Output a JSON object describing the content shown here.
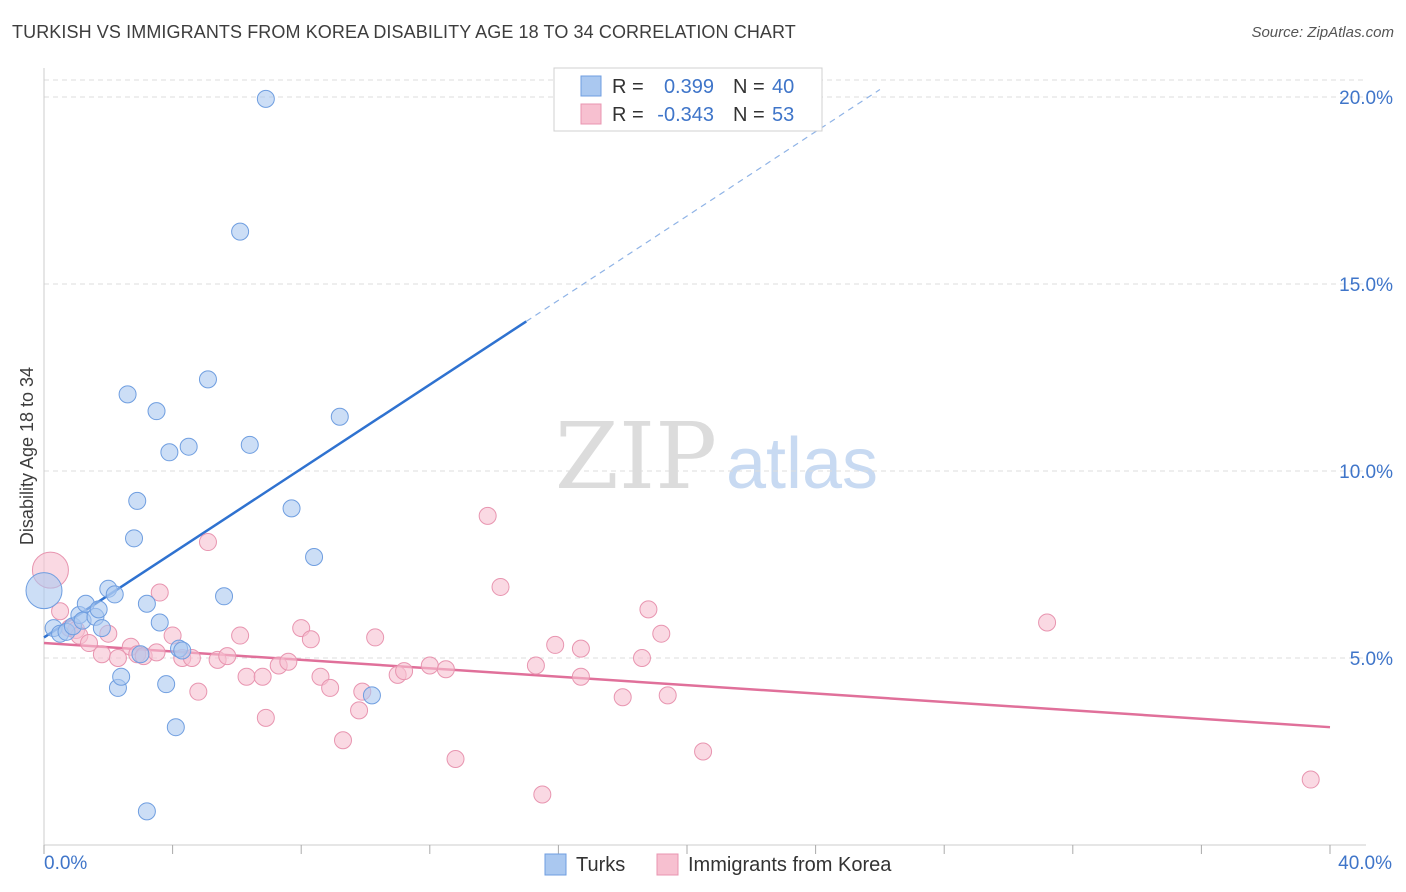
{
  "header": {
    "title": "TURKISH VS IMMIGRANTS FROM KOREA DISABILITY AGE 18 TO 34 CORRELATION CHART",
    "source": "Source: ZipAtlas.com"
  },
  "watermark": {
    "zip": "ZIP",
    "atlas": "atlas"
  },
  "colors": {
    "turks_fill": "#aac8f0",
    "turks_stroke": "#6f9ee0",
    "turks_line": "#2f72d0",
    "korea_fill": "#f7c0d0",
    "korea_stroke": "#e895b0",
    "korea_line": "#e0709a",
    "tick_text": "#3f75c9",
    "grid": "#dddddd"
  },
  "legend": {
    "rows": [
      {
        "r_label": "R =",
        "r_value": "0.399",
        "n_label": "N =",
        "n_value": "40"
      },
      {
        "r_label": "R =",
        "r_value": "-0.343",
        "n_label": "N =",
        "n_value": "53"
      }
    ]
  },
  "chart_data": {
    "type": "scatter",
    "title": "TURKISH VS IMMIGRANTS FROM KOREA DISABILITY AGE 18 TO 34 CORRELATION CHART",
    "xlabel": "",
    "ylabel": "Disability Age 18 to 34",
    "xlim": [
      0,
      40
    ],
    "ylim": [
      0,
      20.5
    ],
    "x_tick_labels": [
      "0.0%",
      "40.0%"
    ],
    "y_ticks": [
      5,
      10,
      15,
      20
    ],
    "y_tick_labels": [
      "5.0%",
      "10.0%",
      "15.0%",
      "20.0%"
    ],
    "legend_labels": [
      "Turks",
      "Immigrants from Korea"
    ],
    "series": [
      {
        "name": "Turks",
        "r": 0.399,
        "n": 40,
        "trend": {
          "x": [
            0.0,
            15.0
          ],
          "y": [
            5.55,
            14.0
          ],
          "dashed_to": [
            26.0,
            20.2
          ]
        },
        "points": [
          {
            "x": 0.0,
            "y": 6.8,
            "big": true
          },
          {
            "x": 0.3,
            "y": 5.8
          },
          {
            "x": 0.5,
            "y": 5.65
          },
          {
            "x": 0.7,
            "y": 5.7
          },
          {
            "x": 0.9,
            "y": 5.85
          },
          {
            "x": 1.1,
            "y": 6.15
          },
          {
            "x": 1.2,
            "y": 6.0
          },
          {
            "x": 1.3,
            "y": 6.45
          },
          {
            "x": 1.6,
            "y": 6.1
          },
          {
            "x": 1.7,
            "y": 6.3
          },
          {
            "x": 1.8,
            "y": 5.8
          },
          {
            "x": 2.0,
            "y": 6.85
          },
          {
            "x": 2.2,
            "y": 6.7
          },
          {
            "x": 2.3,
            "y": 4.2
          },
          {
            "x": 2.4,
            "y": 4.5
          },
          {
            "x": 2.6,
            "y": 12.05
          },
          {
            "x": 2.8,
            "y": 8.2
          },
          {
            "x": 2.9,
            "y": 9.2
          },
          {
            "x": 3.0,
            "y": 5.1
          },
          {
            "x": 3.2,
            "y": 6.45
          },
          {
            "x": 3.2,
            "y": 0.9
          },
          {
            "x": 3.5,
            "y": 11.6
          },
          {
            "x": 3.6,
            "y": 5.95
          },
          {
            "x": 3.8,
            "y": 4.3
          },
          {
            "x": 3.9,
            "y": 10.5
          },
          {
            "x": 4.1,
            "y": 3.15
          },
          {
            "x": 4.2,
            "y": 5.25
          },
          {
            "x": 4.3,
            "y": 5.2
          },
          {
            "x": 4.5,
            "y": 10.65
          },
          {
            "x": 5.1,
            "y": 12.45
          },
          {
            "x": 5.6,
            "y": 6.65
          },
          {
            "x": 6.1,
            "y": 16.4
          },
          {
            "x": 6.4,
            "y": 10.7
          },
          {
            "x": 6.9,
            "y": 19.95
          },
          {
            "x": 7.7,
            "y": 9.0
          },
          {
            "x": 8.4,
            "y": 7.7
          },
          {
            "x": 9.2,
            "y": 11.45
          },
          {
            "x": 10.2,
            "y": 4.0
          }
        ]
      },
      {
        "name": "Immigrants from Korea",
        "r": -0.343,
        "n": 53,
        "trend": {
          "x": [
            0.0,
            40.0
          ],
          "y": [
            5.4,
            3.15
          ]
        },
        "points": [
          {
            "x": 0.2,
            "y": 7.35,
            "big": true
          },
          {
            "x": 0.5,
            "y": 6.25
          },
          {
            "x": 0.8,
            "y": 5.8
          },
          {
            "x": 1.0,
            "y": 5.75
          },
          {
            "x": 1.1,
            "y": 5.6
          },
          {
            "x": 1.4,
            "y": 5.4
          },
          {
            "x": 1.8,
            "y": 5.1
          },
          {
            "x": 2.0,
            "y": 5.65
          },
          {
            "x": 2.3,
            "y": 5.0
          },
          {
            "x": 2.7,
            "y": 5.3
          },
          {
            "x": 2.9,
            "y": 5.1
          },
          {
            "x": 3.1,
            "y": 5.05
          },
          {
            "x": 3.5,
            "y": 5.15
          },
          {
            "x": 3.6,
            "y": 6.75
          },
          {
            "x": 4.0,
            "y": 5.6
          },
          {
            "x": 4.3,
            "y": 5.0
          },
          {
            "x": 4.6,
            "y": 5.0
          },
          {
            "x": 4.8,
            "y": 4.1
          },
          {
            "x": 5.1,
            "y": 8.1
          },
          {
            "x": 5.4,
            "y": 4.95
          },
          {
            "x": 5.7,
            "y": 5.05
          },
          {
            "x": 6.1,
            "y": 5.6
          },
          {
            "x": 6.3,
            "y": 4.5
          },
          {
            "x": 6.8,
            "y": 4.5
          },
          {
            "x": 6.9,
            "y": 3.4
          },
          {
            "x": 7.3,
            "y": 4.8
          },
          {
            "x": 7.6,
            "y": 4.9
          },
          {
            "x": 8.0,
            "y": 5.8
          },
          {
            "x": 8.3,
            "y": 5.5
          },
          {
            "x": 8.6,
            "y": 4.5
          },
          {
            "x": 8.9,
            "y": 4.2
          },
          {
            "x": 9.3,
            "y": 2.8
          },
          {
            "x": 9.8,
            "y": 3.6
          },
          {
            "x": 9.9,
            "y": 4.1
          },
          {
            "x": 10.3,
            "y": 5.55
          },
          {
            "x": 11.0,
            "y": 4.55
          },
          {
            "x": 11.2,
            "y": 4.65
          },
          {
            "x": 12.0,
            "y": 4.8
          },
          {
            "x": 12.5,
            "y": 4.7
          },
          {
            "x": 12.8,
            "y": 2.3
          },
          {
            "x": 13.8,
            "y": 8.8
          },
          {
            "x": 14.2,
            "y": 6.9
          },
          {
            "x": 15.3,
            "y": 4.8
          },
          {
            "x": 15.5,
            "y": 1.35
          },
          {
            "x": 15.9,
            "y": 5.35
          },
          {
            "x": 16.7,
            "y": 4.5
          },
          {
            "x": 16.7,
            "y": 5.25
          },
          {
            "x": 18.0,
            "y": 3.95
          },
          {
            "x": 18.6,
            "y": 5.0
          },
          {
            "x": 18.8,
            "y": 6.3
          },
          {
            "x": 19.2,
            "y": 5.65
          },
          {
            "x": 19.4,
            "y": 4.0
          },
          {
            "x": 20.5,
            "y": 2.5
          },
          {
            "x": 31.2,
            "y": 5.95
          },
          {
            "x": 39.4,
            "y": 1.75
          }
        ]
      }
    ]
  }
}
